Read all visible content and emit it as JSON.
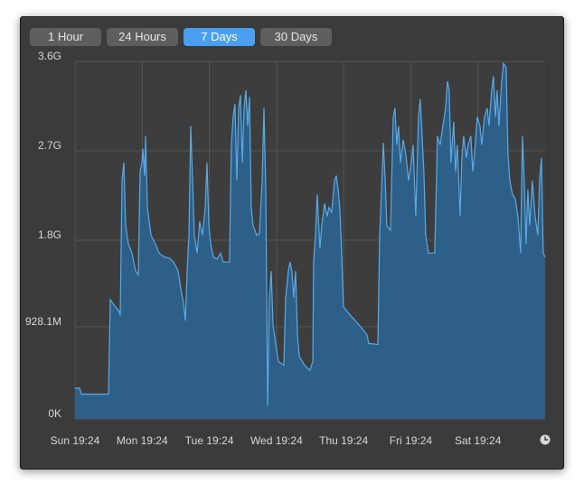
{
  "tabs": [
    "1 Hour",
    "24 Hours",
    "7 Days",
    "30 Days"
  ],
  "selected_tab": 2,
  "chart_data": {
    "type": "area",
    "color": "#2d5f88",
    "line_color": "#5aaae6",
    "grid": true,
    "xlim": [
      0,
      7
    ],
    "ylim": [
      0,
      3.6
    ],
    "xticks": [
      {
        "value": 0,
        "label": "Sun 19:24"
      },
      {
        "value": 1,
        "label": "Mon 19:24"
      },
      {
        "value": 2,
        "label": "Tue 19:24"
      },
      {
        "value": 3,
        "label": "Wed 19:24"
      },
      {
        "value": 4,
        "label": "Thu 19:24"
      },
      {
        "value": 5,
        "label": "Fri 19:24"
      },
      {
        "value": 6,
        "label": "Sat 19:24"
      }
    ],
    "yticks": [
      {
        "value": 0,
        "label": "0K"
      },
      {
        "value": 0.9281,
        "label": "928.1M"
      },
      {
        "value": 1.8,
        "label": "1.8G"
      },
      {
        "value": 2.7,
        "label": "2.7G"
      },
      {
        "value": 3.6,
        "label": "3.6G"
      }
    ],
    "x": [
      0,
      0.067,
      0.094,
      0.498,
      0.525,
      0.579,
      0.659,
      0.673,
      0.7,
      0.727,
      0.754,
      0.794,
      0.848,
      0.902,
      0.942,
      0.969,
      0.996,
      1.009,
      1.036,
      1.05,
      1.077,
      1.131,
      1.198,
      1.252,
      1.332,
      1.4,
      1.467,
      1.534,
      1.575,
      1.615,
      1.642,
      1.669,
      1.696,
      1.723,
      1.75,
      1.777,
      1.817,
      1.857,
      1.898,
      1.938,
      1.965,
      1.992,
      2.019,
      2.059,
      2.113,
      2.167,
      2.207,
      2.301,
      2.328,
      2.355,
      2.382,
      2.409,
      2.436,
      2.463,
      2.49,
      2.517,
      2.544,
      2.571,
      2.598,
      2.624,
      2.651,
      2.705,
      2.746,
      2.786,
      2.813,
      2.84,
      2.867,
      2.894,
      2.921,
      2.948,
      2.988,
      3.028,
      3.109,
      3.136,
      3.176,
      3.203,
      3.23,
      3.257,
      3.284,
      3.311,
      3.338,
      3.419,
      3.499,
      3.54,
      3.553,
      3.58,
      3.607,
      3.647,
      3.674,
      3.715,
      3.755,
      3.782,
      3.822,
      3.863,
      3.89,
      3.917,
      3.943,
      3.97,
      3.997,
      4.092,
      4.226,
      4.347,
      4.374,
      4.509,
      4.536,
      4.563,
      4.59,
      4.616,
      4.643,
      4.697,
      4.738,
      4.764,
      4.791,
      4.818,
      4.845,
      4.886,
      4.926,
      4.966,
      5.007,
      5.034,
      5.074,
      5.114,
      5.141,
      5.168,
      5.195,
      5.222,
      5.262,
      5.357,
      5.397,
      5.437,
      5.478,
      5.518,
      5.545,
      5.572,
      5.599,
      5.639,
      5.666,
      5.693,
      5.734,
      5.76,
      5.787,
      5.828,
      5.855,
      5.895,
      5.922,
      5.949,
      5.989,
      6.03,
      6.057,
      6.097,
      6.137,
      6.164,
      6.205,
      6.232,
      6.258,
      6.285,
      6.312,
      6.353,
      6.38,
      6.42,
      6.447,
      6.474,
      6.514,
      6.555,
      6.595,
      6.635,
      6.662,
      6.689,
      6.716,
      6.743,
      6.77,
      6.81,
      6.851,
      6.891,
      6.918,
      6.945,
      6.972,
      7.0
    ],
    "values": [
      0.31,
      0.31,
      0.25,
      0.25,
      1.2,
      1.15,
      1.08,
      1.04,
      2.4,
      2.58,
      1.95,
      1.76,
      1.67,
      1.49,
      1.45,
      2.49,
      2.58,
      2.72,
      2.45,
      2.85,
      2.13,
      1.85,
      1.76,
      1.67,
      1.63,
      1.62,
      1.58,
      1.49,
      1.31,
      1.17,
      0.99,
      1.49,
      1.85,
      2.95,
      2.4,
      1.85,
      1.67,
      1.99,
      1.85,
      2.13,
      2.58,
      1.95,
      1.76,
      1.63,
      1.61,
      1.67,
      1.58,
      1.58,
      2.76,
      3.04,
      3.17,
      2.4,
      3.13,
      3.26,
      2.58,
      3.13,
      3.31,
      2.95,
      3.24,
      2.13,
      1.95,
      1.85,
      1.87,
      2.4,
      3.13,
      2.31,
      0.13,
      1.22,
      1.49,
      0.95,
      0.76,
      0.58,
      0.54,
      1.22,
      1.49,
      1.58,
      1.49,
      1.22,
      1.49,
      0.85,
      0.63,
      0.54,
      0.49,
      0.58,
      1.58,
      1.85,
      2.26,
      1.72,
      1.95,
      2.17,
      2.04,
      2.13,
      2.08,
      2.4,
      2.45,
      2.31,
      2.13,
      1.67,
      1.13,
      1.05,
      0.95,
      0.85,
      0.76,
      0.75,
      1.85,
      2.31,
      2.78,
      2.45,
      1.95,
      1.9,
      3.04,
      3.13,
      2.76,
      2.95,
      2.58,
      2.81,
      2.67,
      2.4,
      2.58,
      2.76,
      2.04,
      3.04,
      3.22,
      2.85,
      2.49,
      1.85,
      1.67,
      1.67,
      2.85,
      2.76,
      2.95,
      3.13,
      3.4,
      3.31,
      2.58,
      2.99,
      2.49,
      2.76,
      2.04,
      2.63,
      2.85,
      2.63,
      2.76,
      2.85,
      2.49,
      2.67,
      3.04,
      2.95,
      2.76,
      3.04,
      3.13,
      2.95,
      3.31,
      3.45,
      3.04,
      3.31,
      2.95,
      3.4,
      3.58,
      3.54,
      2.67,
      2.4,
      2.26,
      2.22,
      2.04,
      1.67,
      2.85,
      2.4,
      1.76,
      2.31,
      1.95,
      2.4,
      2.04,
      1.85,
      2.4,
      2.63,
      1.67,
      1.63
    ]
  }
}
